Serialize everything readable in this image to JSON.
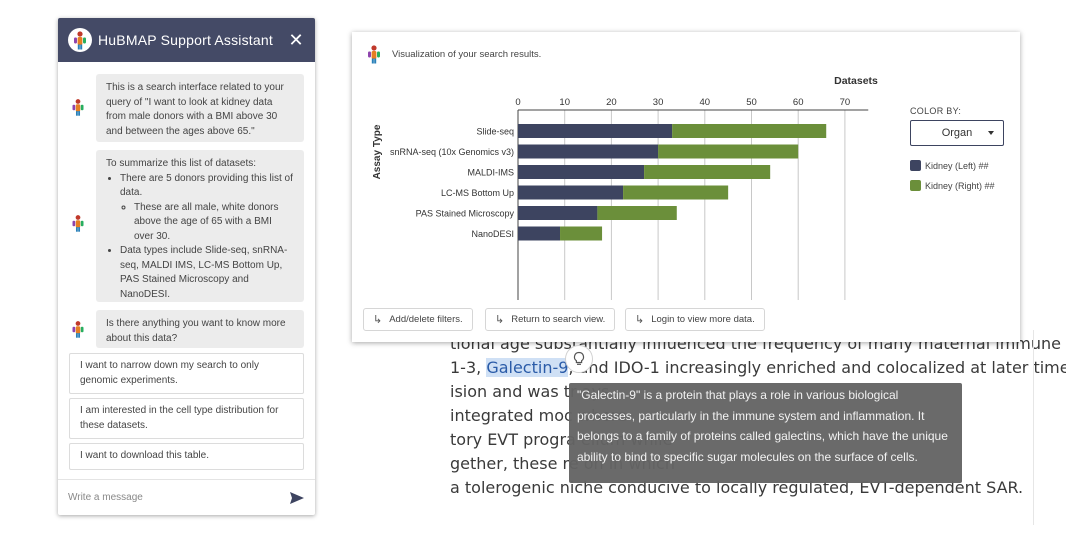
{
  "chat": {
    "title": "HuBMAP Support Assistant",
    "close_label": "✕",
    "messages": [
      {
        "text": "This is a search interface related to your query of \"I want to look at kidney data from male donors with a BMI above 30 and between the ages above 65.\""
      },
      {
        "intro": "To summarize this list of datasets:",
        "bullet1": "There are 5 donors providing this list of data.",
        "sub_bullet": "These are all male, white donors above the age of 65 with a BMI over 30.",
        "bullet2": "Data types include Slide-seq, snRNA-seq, MALDI IMS, LC-MS Bottom Up, PAS Stained Microscopy and NanoDESI."
      },
      {
        "text": "Is there anything you want to know more about this data?"
      }
    ],
    "suggestions": [
      "I want to narrow down my search to only genomic experiments.",
      "I am interested in the cell type distribution for these datasets.",
      "I want to download this table."
    ],
    "input_placeholder": "Write a message",
    "send_icon": "send-icon"
  },
  "viz": {
    "caption": "Visualization of your search results.",
    "color_by": {
      "label": "COLOR BY:",
      "selected": "Organ"
    },
    "legend": [
      {
        "label": "Kidney (Left) ##",
        "color": "#3d4460"
      },
      {
        "label": "Kidney (Right) ##",
        "color": "#6b8f3a"
      }
    ],
    "buttons": [
      "Add/delete filters.",
      "Return to search view.",
      "Login to view more data."
    ]
  },
  "chart_data": {
    "type": "bar",
    "orientation": "horizontal",
    "stacked": true,
    "title": "Datasets",
    "ylabel": "Assay Type",
    "xlim": [
      0,
      75
    ],
    "xticks": [
      0,
      10,
      20,
      30,
      40,
      50,
      60,
      70
    ],
    "categories": [
      "Slide-seq",
      "snRNA-seq (10x Genomics v3)",
      "MALDI-IMS",
      "LC-MS Bottom Up",
      "PAS Stained Microscopy",
      "NanoDESI"
    ],
    "series": [
      {
        "name": "Kidney (Left) ##",
        "color": "#3d4460",
        "values": [
          33,
          30,
          27,
          22.5,
          17,
          9
        ]
      },
      {
        "name": "Kidney (Right) ##",
        "color": "#6b8f3a",
        "values": [
          33,
          30,
          27,
          22.5,
          17,
          9
        ]
      }
    ],
    "grid": true
  },
  "article": {
    "lines": [
      {
        "text": "tional age substantially influenced the frequency of many maternal immune"
      },
      {
        "before": "1-3, ",
        "highlight": "Galectin-9",
        "after": ", and IDO-1 increasingly enriched and colocalized at later time"
      },
      {
        "text": "ision and was tr                                                                         ays"
      },
      {
        "text": " integrated moc                                                                        where"
      },
      {
        "text": "tory EVT progra                                                                        elium while"
      },
      {
        "text": "gether, these re                                                                        on in which"
      },
      {
        "text": " a tolerogenic niche conducive to locally regulated, EVT-dependent SAR."
      }
    ]
  },
  "tooltip": {
    "icon": "lightbulb-icon",
    "text": "\"Galectin-9\" is a protein that plays a role in various biological processes, particularly in the immune system and inflammation. It belongs to a family of proteins called galectins, which have the unique ability to bind to specific sugar molecules on the surface of cells."
  }
}
